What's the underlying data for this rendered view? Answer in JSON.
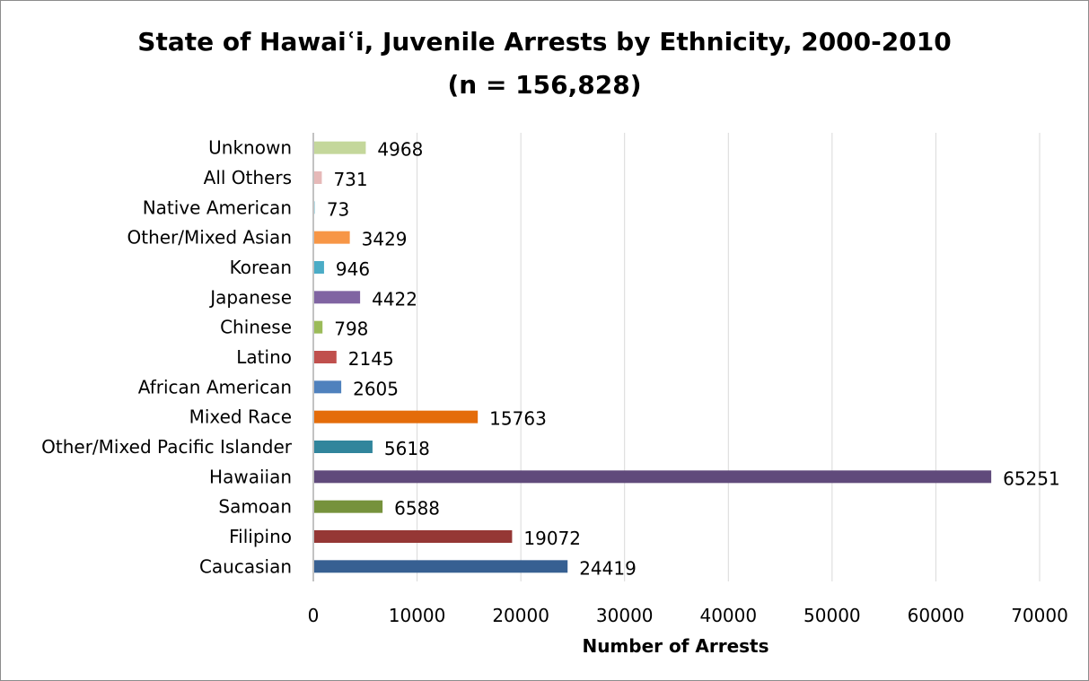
{
  "chart_data": {
    "type": "bar",
    "orientation": "horizontal",
    "title": "State of Hawaiʿi, Juvenile Arrests by Ethnicity, 2000-2010",
    "subtitle": "(n = 156,828)",
    "xlabel": "Number of Arrests",
    "ylabel": "",
    "xlim": [
      0,
      70000
    ],
    "xticks": [
      0,
      10000,
      20000,
      30000,
      40000,
      50000,
      60000,
      70000
    ],
    "grid": true,
    "legend": "none",
    "categories": [
      "Unknown",
      "All Others",
      "Native American",
      "Other/Mixed Asian",
      "Korean",
      "Japanese",
      "Chinese",
      "Latino",
      "African American",
      "Mixed Race",
      "Other/Mixed Pacific Islander",
      "Hawaiian",
      "Samoan",
      "Filipino",
      "Caucasian"
    ],
    "values": [
      4968,
      731,
      73,
      3429,
      946,
      4422,
      798,
      2145,
      2605,
      15763,
      5618,
      65251,
      6588,
      19072,
      24419
    ],
    "value_labels": [
      "4968",
      "731",
      "73",
      "3429",
      "946",
      "4422",
      "798",
      "2145",
      "2605",
      "15763",
      "5618",
      "65251",
      "6588",
      "19072",
      "24419"
    ],
    "colors": [
      "#c4d79b",
      "#e6b9b8",
      "#b7dee8",
      "#f79646",
      "#4bacc6",
      "#8064a2",
      "#9bbb59",
      "#c0504d",
      "#4f81bd",
      "#e46c0a",
      "#31859c",
      "#604a7b",
      "#76923c",
      "#953735",
      "#376092"
    ]
  }
}
